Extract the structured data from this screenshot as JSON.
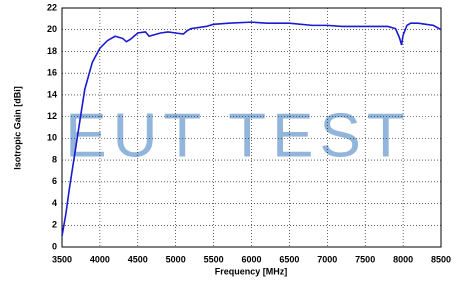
{
  "chart_data": {
    "type": "line",
    "x_label": "Frequency [MHz]",
    "y_label": "Isotropic Gain [dBi]",
    "watermark": "EUT TEST",
    "x": [
      3500,
      3550,
      3600,
      3700,
      3800,
      3900,
      4000,
      4100,
      4200,
      4300,
      4350,
      4400,
      4500,
      4600,
      4650,
      4700,
      4800,
      4900,
      5000,
      5100,
      5150,
      5200,
      5400,
      5500,
      5700,
      6000,
      6200,
      6500,
      6800,
      7000,
      7200,
      7500,
      7800,
      7900,
      7950,
      7980,
      8000,
      8050,
      8100,
      8200,
      8300,
      8400,
      8500
    ],
    "series": [
      {
        "color": "#1a1ad0",
        "values": [
          1,
          3,
          5.5,
          10,
          14.5,
          17,
          18.3,
          19,
          19.4,
          19.2,
          18.9,
          19.1,
          19.7,
          19.8,
          19.4,
          19.5,
          19.7,
          19.8,
          19.7,
          19.6,
          19.9,
          20.1,
          20.3,
          20.5,
          20.6,
          20.7,
          20.6,
          20.6,
          20.4,
          20.4,
          20.3,
          20.3,
          20.3,
          20.1,
          19.3,
          18.6,
          19.5,
          20.4,
          20.6,
          20.6,
          20.5,
          20.4,
          20.0
        ]
      }
    ],
    "xlim": [
      3500,
      8500
    ],
    "xticks": [
      3500,
      4000,
      4500,
      5000,
      5500,
      6000,
      6500,
      7000,
      7500,
      8000,
      8500
    ],
    "ylim": [
      0,
      22
    ],
    "yticks": [
      0,
      2,
      4,
      6,
      8,
      10,
      12,
      14,
      16,
      18,
      20,
      22
    ],
    "grid": true
  }
}
